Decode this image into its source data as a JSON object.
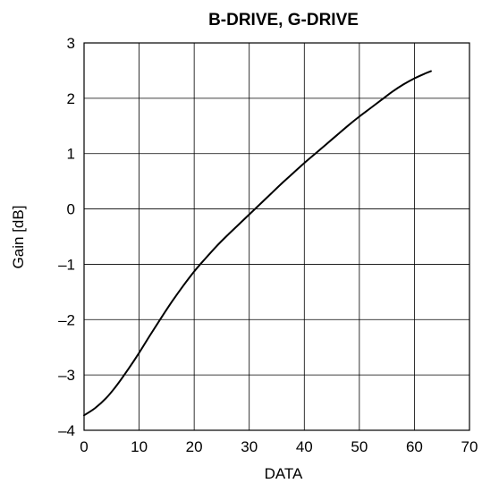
{
  "chart_data": {
    "type": "line",
    "title": "B-DRIVE, G-DRIVE",
    "xlabel": "DATA",
    "ylabel": "Gain [dB]",
    "xlim": [
      0,
      70
    ],
    "ylim": [
      -4,
      3
    ],
    "xticks": [
      0,
      10,
      20,
      30,
      40,
      50,
      60,
      70
    ],
    "yticks": [
      -4,
      -3,
      -2,
      -1,
      0,
      1,
      2,
      3
    ],
    "xtick_labels": [
      "0",
      "10",
      "20",
      "30",
      "40",
      "50",
      "60",
      "70"
    ],
    "ytick_labels": [
      "–4",
      "–3",
      "–2",
      "–1",
      "0",
      "1",
      "2",
      "3"
    ],
    "grid": true,
    "series": [
      {
        "color": "#000000",
        "x": [
          0,
          2,
          4,
          6,
          8,
          10,
          12,
          14,
          16,
          18,
          20,
          22,
          24,
          26,
          28,
          30,
          32,
          34,
          36,
          38,
          40,
          42,
          44,
          46,
          48,
          50,
          52,
          54,
          56,
          58,
          60,
          62,
          63
        ],
        "y": [
          -3.73,
          -3.6,
          -3.42,
          -3.18,
          -2.9,
          -2.6,
          -2.28,
          -1.97,
          -1.67,
          -1.39,
          -1.13,
          -0.9,
          -0.68,
          -0.48,
          -0.29,
          -0.1,
          0.09,
          0.28,
          0.47,
          0.65,
          0.83,
          1.0,
          1.17,
          1.34,
          1.51,
          1.67,
          1.82,
          1.97,
          2.12,
          2.25,
          2.36,
          2.45,
          2.49
        ]
      }
    ]
  }
}
